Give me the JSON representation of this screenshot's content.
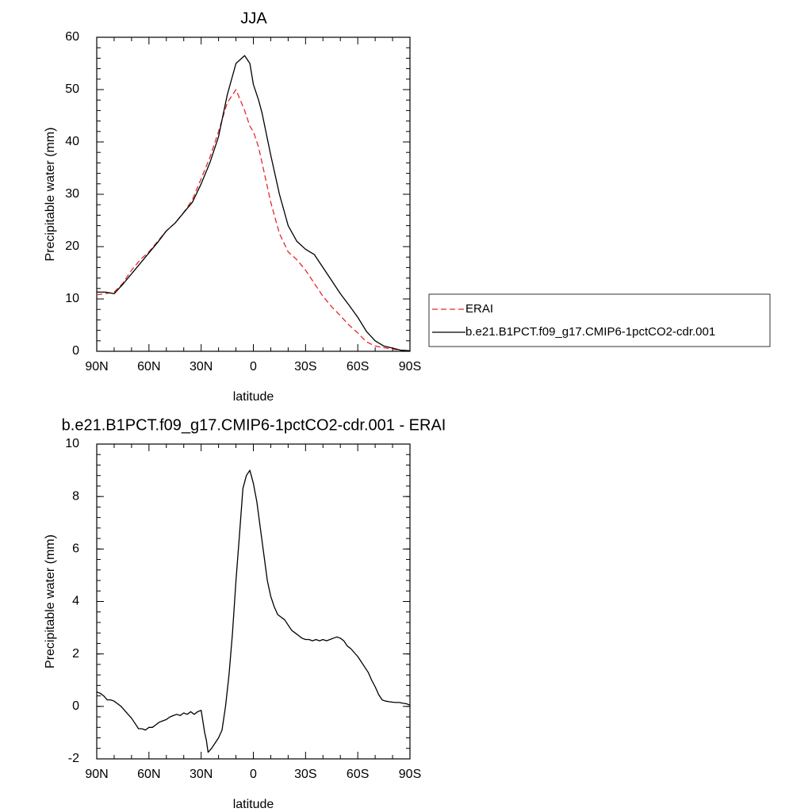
{
  "chart_data": [
    {
      "type": "line",
      "title": "JJA",
      "xlabel": "latitude",
      "ylabel": "Precipitable water (mm)",
      "xlim": [
        90,
        -90
      ],
      "ylim": [
        0,
        60
      ],
      "xticks": [
        90,
        60,
        30,
        0,
        -30,
        -60,
        -90
      ],
      "xtick_labels": [
        "90N",
        "60N",
        "30N",
        "0",
        "30S",
        "60S",
        "90S"
      ],
      "yticks": [
        0,
        10,
        20,
        30,
        40,
        50,
        60
      ],
      "ytick_labels": [
        "0",
        "10",
        "20",
        "30",
        "40",
        "50",
        "60"
      ],
      "grid": false,
      "legend": "right",
      "series": [
        {
          "name": "ERAI",
          "color": "#e8262b",
          "style": "dashed",
          "x": [
            90,
            85,
            80,
            75,
            70,
            65,
            60,
            55,
            50,
            45,
            40,
            35,
            30,
            25,
            20,
            15,
            10,
            5,
            2,
            0,
            -3,
            -5,
            -10,
            -15,
            -20,
            -25,
            -30,
            -35,
            -40,
            -45,
            -50,
            -55,
            -60,
            -65,
            -70,
            -75,
            -80,
            -85,
            -90
          ],
          "y": [
            10.8,
            11.0,
            11.3,
            13.0,
            15.5,
            17.5,
            19.0,
            21.0,
            23.0,
            24.5,
            26.5,
            29.0,
            33.0,
            37.0,
            42.0,
            47.5,
            50.0,
            46.0,
            43.0,
            42.0,
            39.0,
            36.0,
            28.5,
            22.5,
            19.0,
            17.5,
            15.5,
            13.0,
            10.5,
            8.5,
            6.8,
            5.0,
            3.5,
            1.8,
            1.0,
            0.7,
            0.4,
            0.2,
            0.1
          ]
        },
        {
          "name": "b.e21.B1PCT.f09_g17.CMIP6-1pctCO2-cdr.001",
          "color": "#000000",
          "style": "solid",
          "x": [
            90,
            85,
            80,
            75,
            70,
            65,
            60,
            55,
            50,
            45,
            40,
            35,
            30,
            25,
            20,
            15,
            10,
            5,
            2,
            0,
            -3,
            -5,
            -10,
            -15,
            -20,
            -25,
            -30,
            -35,
            -40,
            -45,
            -50,
            -55,
            -60,
            -65,
            -70,
            -75,
            -80,
            -85,
            -90
          ],
          "y": [
            11.3,
            11.3,
            11.0,
            12.8,
            14.8,
            16.8,
            18.8,
            20.8,
            23.0,
            24.5,
            26.5,
            28.5,
            32.0,
            36.0,
            41.0,
            49.0,
            55.0,
            56.5,
            55.0,
            51.0,
            48.0,
            45.5,
            37.5,
            30.0,
            24.0,
            21.0,
            19.5,
            18.5,
            16.0,
            13.5,
            11.0,
            8.8,
            6.5,
            3.8,
            2.0,
            1.0,
            0.6,
            0.2,
            0.1
          ]
        }
      ]
    },
    {
      "type": "line",
      "title": "b.e21.B1PCT.f09_g17.CMIP6-1pctCO2-cdr.001 - ERAI",
      "xlabel": "latitude",
      "ylabel": "Precipitable water (mm)",
      "xlim": [
        90,
        -90
      ],
      "ylim": [
        -2,
        10
      ],
      "xticks": [
        90,
        60,
        30,
        0,
        -30,
        -60,
        -90
      ],
      "xtick_labels": [
        "90N",
        "60N",
        "30N",
        "0",
        "30S",
        "60S",
        "90S"
      ],
      "yticks": [
        -2,
        0,
        2,
        4,
        6,
        8,
        10
      ],
      "ytick_labels": [
        "-2",
        "0",
        "2",
        "4",
        "6",
        "8",
        "10"
      ],
      "grid": false,
      "series": [
        {
          "color": "#000000",
          "style": "solid",
          "x": [
            90,
            88,
            86,
            84,
            82,
            80,
            78,
            76,
            74,
            72,
            70,
            68,
            66,
            64,
            62,
            60,
            58,
            56,
            54,
            52,
            50,
            48,
            46,
            44,
            42,
            40,
            38,
            36,
            34,
            32,
            30,
            28,
            27,
            26,
            24,
            22,
            20,
            18,
            16,
            14,
            12,
            10,
            8,
            6,
            4,
            2,
            0,
            -2,
            -4,
            -6,
            -8,
            -10,
            -12,
            -14,
            -16,
            -18,
            -20,
            -22,
            -24,
            -26,
            -28,
            -30,
            -32,
            -34,
            -36,
            -38,
            -40,
            -42,
            -44,
            -46,
            -48,
            -50,
            -52,
            -54,
            -56,
            -58,
            -60,
            -62,
            -64,
            -66,
            -68,
            -70,
            -72,
            -74,
            -76,
            -78,
            -80,
            -82,
            -84,
            -86,
            -88,
            -90
          ],
          "y": [
            0.55,
            0.5,
            0.4,
            0.25,
            0.25,
            0.2,
            0.1,
            0.0,
            -0.15,
            -0.3,
            -0.45,
            -0.65,
            -0.85,
            -0.85,
            -0.9,
            -0.8,
            -0.8,
            -0.7,
            -0.6,
            -0.55,
            -0.5,
            -0.4,
            -0.35,
            -0.3,
            -0.35,
            -0.25,
            -0.3,
            -0.2,
            -0.3,
            -0.2,
            -0.15,
            -1.0,
            -1.3,
            -1.75,
            -1.6,
            -1.4,
            -1.2,
            -0.9,
            0.0,
            1.2,
            2.8,
            4.8,
            6.5,
            8.3,
            8.8,
            9.0,
            8.5,
            7.8,
            6.8,
            5.8,
            4.8,
            4.2,
            3.8,
            3.5,
            3.4,
            3.3,
            3.1,
            2.9,
            2.8,
            2.7,
            2.6,
            2.55,
            2.55,
            2.5,
            2.55,
            2.5,
            2.55,
            2.5,
            2.55,
            2.6,
            2.65,
            2.6,
            2.5,
            2.3,
            2.2,
            2.05,
            1.9,
            1.7,
            1.5,
            1.3,
            1.0,
            0.75,
            0.45,
            0.25,
            0.2,
            0.18,
            0.16,
            0.15,
            0.15,
            0.12,
            0.1,
            0.05
          ]
        }
      ]
    }
  ]
}
